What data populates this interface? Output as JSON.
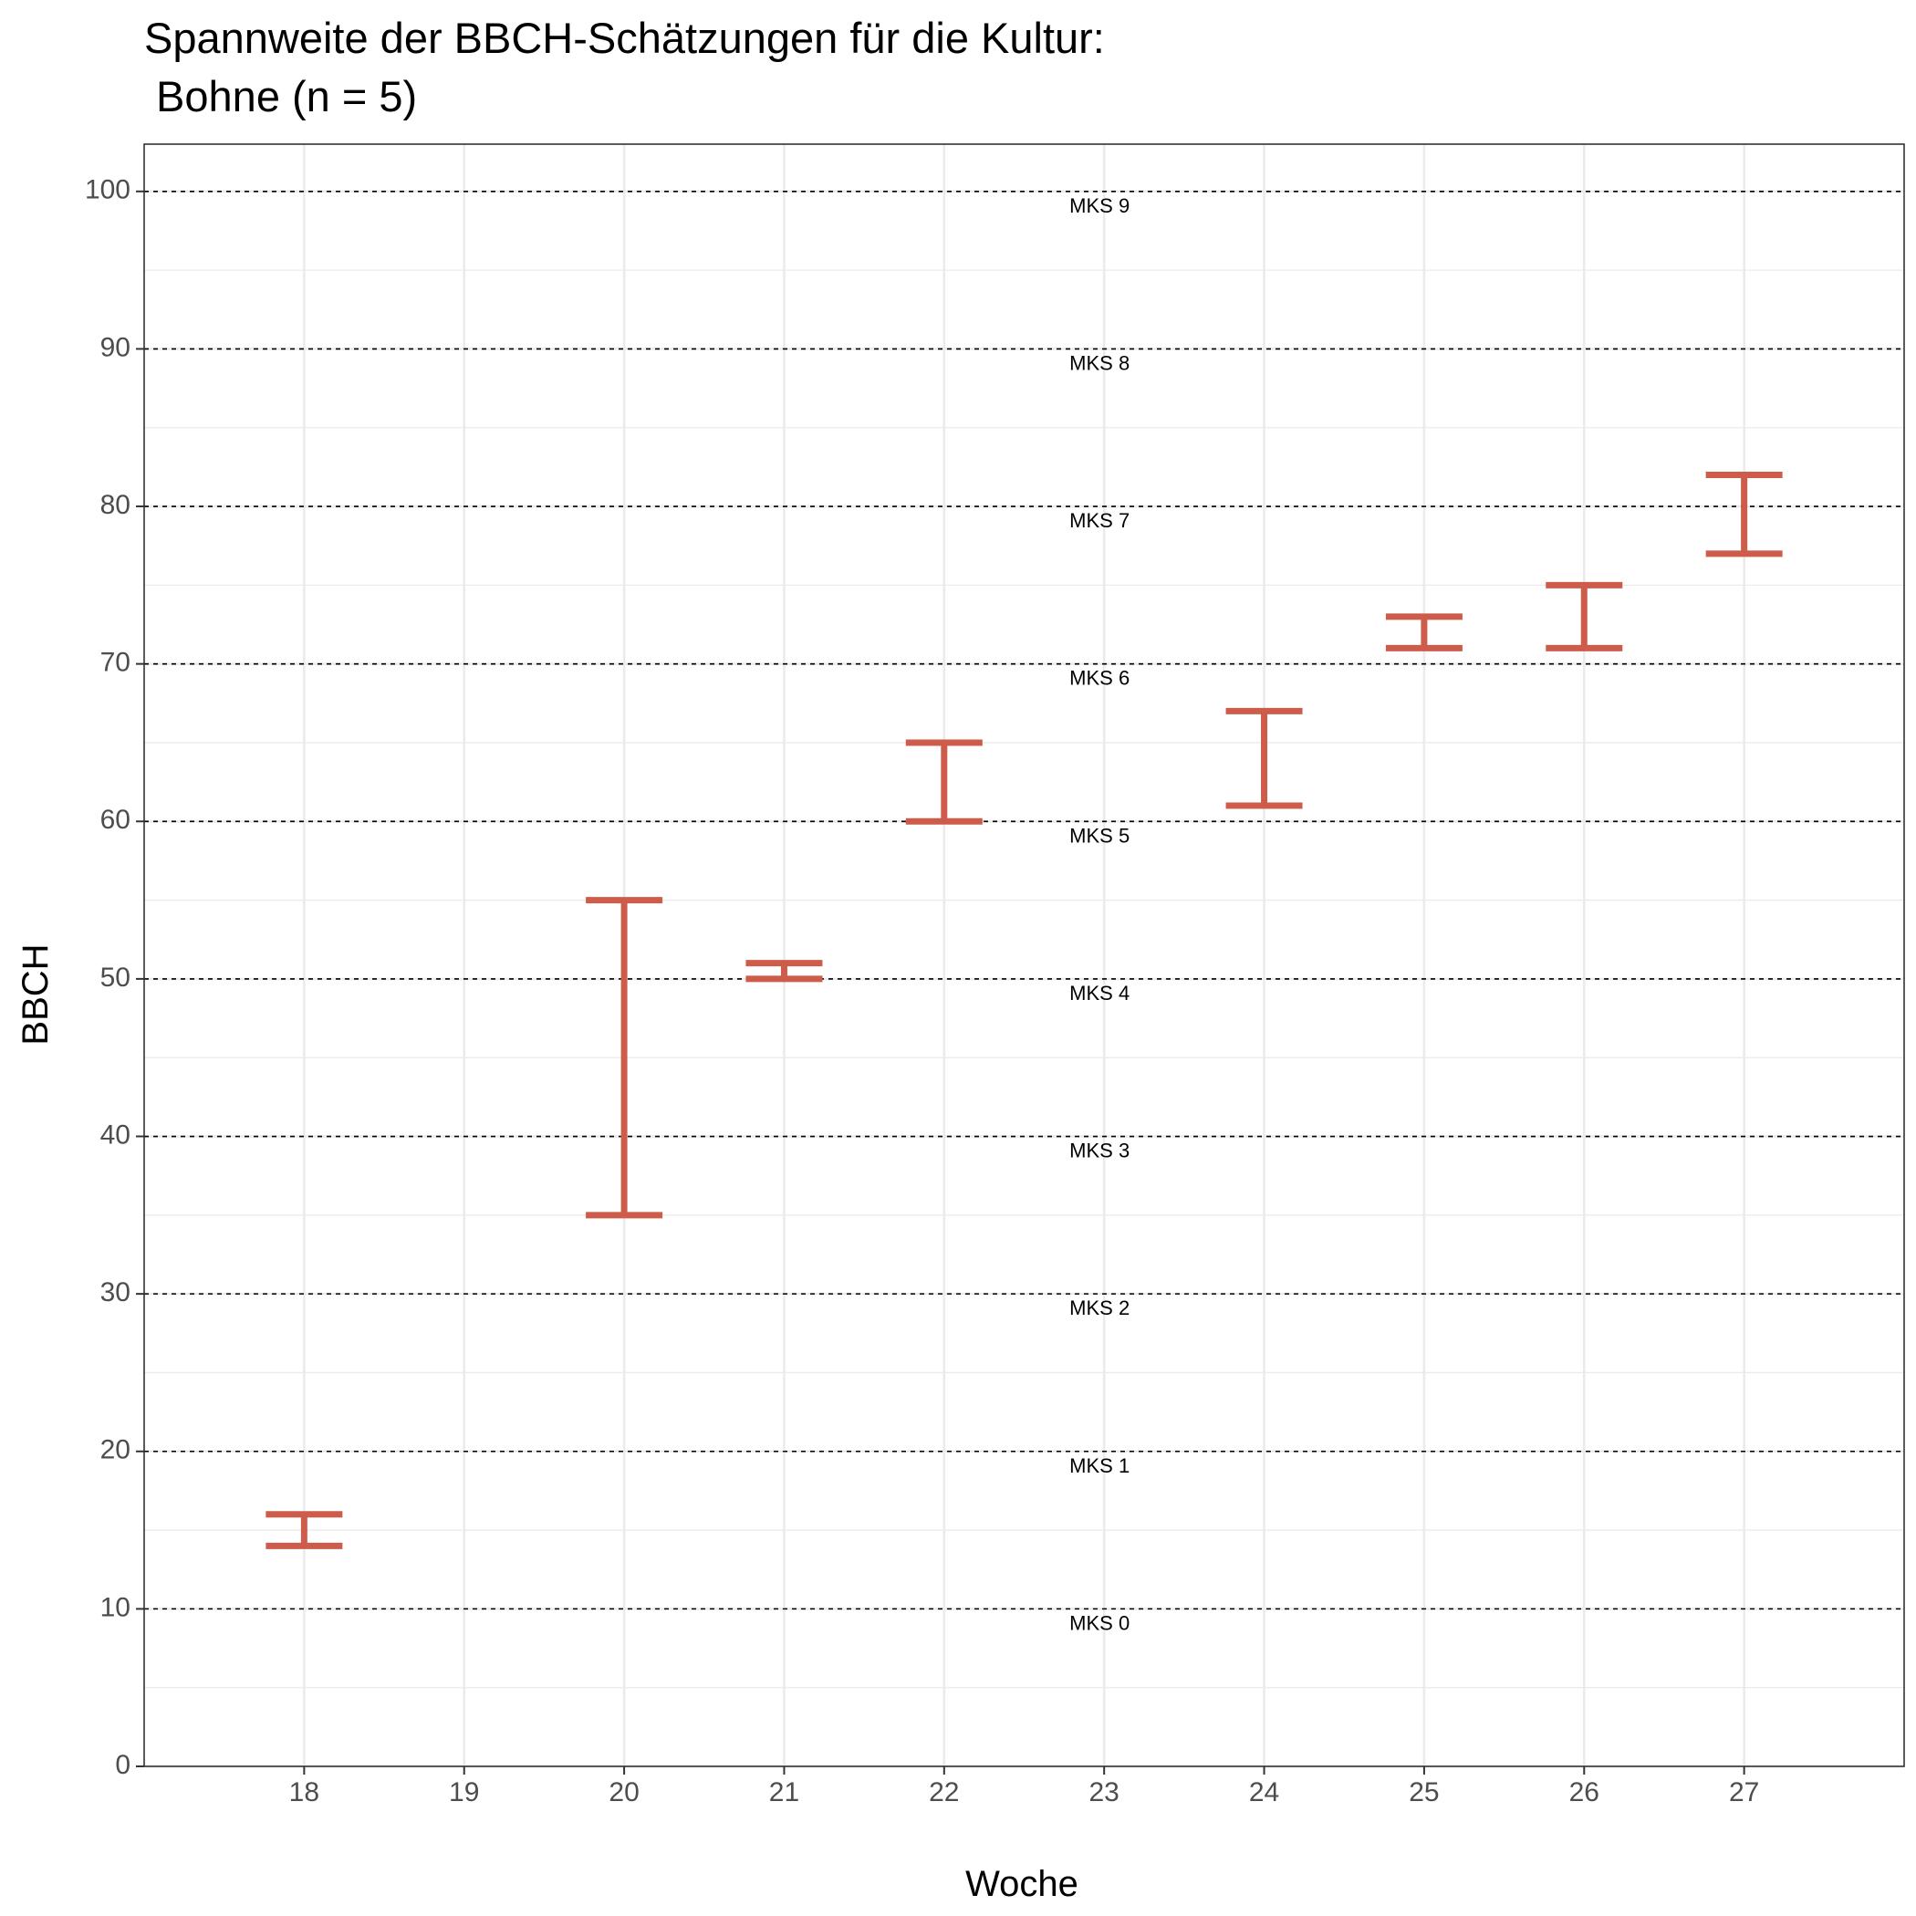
{
  "chart_data": {
    "type": "errorbar",
    "title_line1": "Spannweite der BBCH-Schätzungen für die Kultur:",
    "title_line2": " Bohne (n = 5)",
    "xlabel": "Woche",
    "ylabel": "BBCH",
    "xlim": [
      17,
      28
    ],
    "ylim": [
      0,
      103
    ],
    "x_ticks": [
      18,
      19,
      20,
      21,
      22,
      23,
      24,
      25,
      26,
      27
    ],
    "y_ticks": [
      0,
      10,
      20,
      30,
      40,
      50,
      60,
      70,
      80,
      90,
      100
    ],
    "grid": true,
    "bar_color": "#CD5C4A",
    "series": [
      {
        "x": 18,
        "ymin": 14,
        "ymax": 16
      },
      {
        "x": 20,
        "ymin": 35,
        "ymax": 55
      },
      {
        "x": 21,
        "ymin": 50,
        "ymax": 51
      },
      {
        "x": 22,
        "ymin": 60,
        "ymax": 65
      },
      {
        "x": 24,
        "ymin": 61,
        "ymax": 67
      },
      {
        "x": 25,
        "ymin": 71,
        "ymax": 73
      },
      {
        "x": 26,
        "ymin": 71,
        "ymax": 75
      },
      {
        "x": 27,
        "ymin": 77,
        "ymax": 82
      }
    ],
    "reference_lines": [
      {
        "y": 10,
        "label": "MKS 0"
      },
      {
        "y": 20,
        "label": "MKS 1"
      },
      {
        "y": 30,
        "label": "MKS 2"
      },
      {
        "y": 40,
        "label": "MKS 3"
      },
      {
        "y": 50,
        "label": "MKS 4"
      },
      {
        "y": 60,
        "label": "MKS 5"
      },
      {
        "y": 70,
        "label": "MKS 6"
      },
      {
        "y": 80,
        "label": "MKS 7"
      },
      {
        "y": 90,
        "label": "MKS 8"
      },
      {
        "y": 100,
        "label": "MKS 9"
      }
    ],
    "reference_label_x": 23
  }
}
